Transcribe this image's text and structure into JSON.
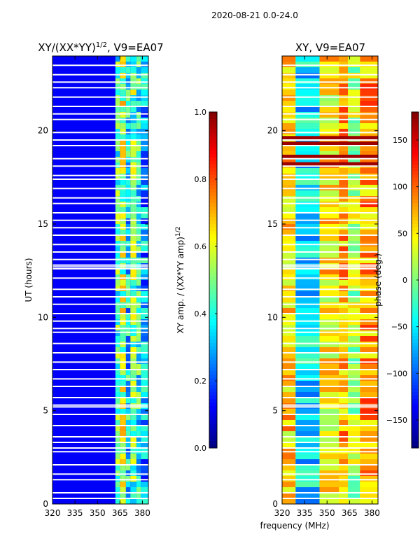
{
  "figure": {
    "suptitle": "2020-08-21 0.0-24.0",
    "shared_xlabel": "frequency (MHz)"
  },
  "chart_data": [
    {
      "type": "heatmap",
      "title": "XY/(XX*YY)",
      "title_exponent": "1/2",
      "title_suffix": ", V9=EA07",
      "xlabel": "",
      "ylabel": "UT (hours)",
      "x_range": [
        320,
        384
      ],
      "y_range": [
        0,
        24
      ],
      "x_ticks": [
        320,
        335,
        350,
        365,
        380
      ],
      "y_ticks": [
        0,
        5,
        10,
        15,
        20
      ],
      "colorscale": "jet",
      "background_value": 0.12,
      "flagged_rows_hours": [
        0.3,
        0.6,
        1.3,
        1.6,
        2.1,
        2.8,
        3.0,
        3.3,
        3.6,
        4.2,
        4.8,
        5.2,
        5.3,
        5.7,
        6.3,
        6.7,
        7.2,
        7.6,
        8.1,
        8.6,
        9.2,
        9.4,
        9.8,
        10.2,
        10.7,
        11.1,
        11.5,
        12.1,
        12.6,
        12.7,
        12.8,
        13.1,
        13.5,
        13.9,
        14.4,
        14.8,
        15.2,
        15.6,
        16.1,
        16.4,
        16.9,
        17.4,
        17.6,
        18.1,
        18.5,
        19.2,
        19.5,
        19.9,
        20.6,
        20.9,
        21.3,
        21.8,
        22.3,
        22.6,
        23.0,
        23.5
      ],
      "band_levels": [
        {
          "start": 320,
          "end": 362,
          "value": 0.12
        },
        {
          "start": 362,
          "end": 365,
          "value": 0.45
        },
        {
          "start": 365,
          "end": 369,
          "value": 0.55
        },
        {
          "start": 369,
          "end": 372,
          "value": 0.35
        },
        {
          "start": 372,
          "end": 376,
          "value": 0.48
        },
        {
          "start": 376,
          "end": 379,
          "value": 0.4
        },
        {
          "start": 379,
          "end": 384,
          "value": 0.3
        }
      ]
    },
    {
      "type": "heatmap",
      "title": "XY, V9=EA07",
      "xlabel": "frequency (MHz)",
      "ylabel": "",
      "x_range": [
        320,
        384
      ],
      "y_range": [
        0,
        24
      ],
      "x_ticks": [
        320,
        335,
        350,
        365,
        380
      ],
      "y_ticks": [
        0,
        5,
        10,
        15,
        20
      ],
      "colorscale": "jet",
      "value_range": [
        -180,
        180
      ],
      "flagged_rows_hours": [
        0.3,
        0.6,
        1.3,
        1.6,
        2.1,
        2.8,
        3.0,
        3.3,
        3.6,
        4.2,
        4.8,
        5.2,
        5.3,
        5.7,
        6.3,
        6.7,
        7.2,
        7.6,
        8.1,
        8.6,
        9.2,
        9.4,
        9.8,
        10.2,
        10.7,
        11.1,
        11.5,
        12.1,
        12.6,
        12.7,
        12.8,
        13.1,
        13.5,
        13.9,
        14.4,
        14.8,
        15.2,
        15.6,
        16.1,
        16.4,
        16.9,
        17.4,
        17.6,
        18.1,
        18.5,
        19.2,
        19.5,
        19.9,
        20.6,
        20.9,
        21.3,
        21.8,
        22.3,
        22.6,
        23.0,
        23.5
      ],
      "band_phases": [
        {
          "start": 320,
          "end": 329,
          "value": 60
        },
        {
          "start": 329,
          "end": 345,
          "value": -55
        },
        {
          "start": 345,
          "end": 358,
          "value": 50
        },
        {
          "start": 358,
          "end": 364,
          "value": 75
        },
        {
          "start": 364,
          "end": 372,
          "value": 20
        },
        {
          "start": 372,
          "end": 384,
          "value": 80
        }
      ],
      "red_stripe_hours": [
        18.2,
        18.6,
        19.3,
        19.6
      ]
    }
  ],
  "colorbars": [
    {
      "label": "XY amp. / (XX*YY amp)",
      "label_exponent": "1/2",
      "range": [
        0.0,
        1.0
      ],
      "ticks": [
        "0.0",
        "0.2",
        "0.4",
        "0.6",
        "0.8",
        "1.0"
      ],
      "tick_values": [
        0.0,
        0.2,
        0.4,
        0.6,
        0.8,
        1.0
      ]
    },
    {
      "label": "phase (deg.)",
      "range": [
        -180,
        180
      ],
      "ticks": [
        "−150",
        "−100",
        "−50",
        "0",
        "50",
        "100",
        "150"
      ],
      "tick_values": [
        -150,
        -100,
        -50,
        0,
        50,
        100,
        150
      ]
    }
  ]
}
